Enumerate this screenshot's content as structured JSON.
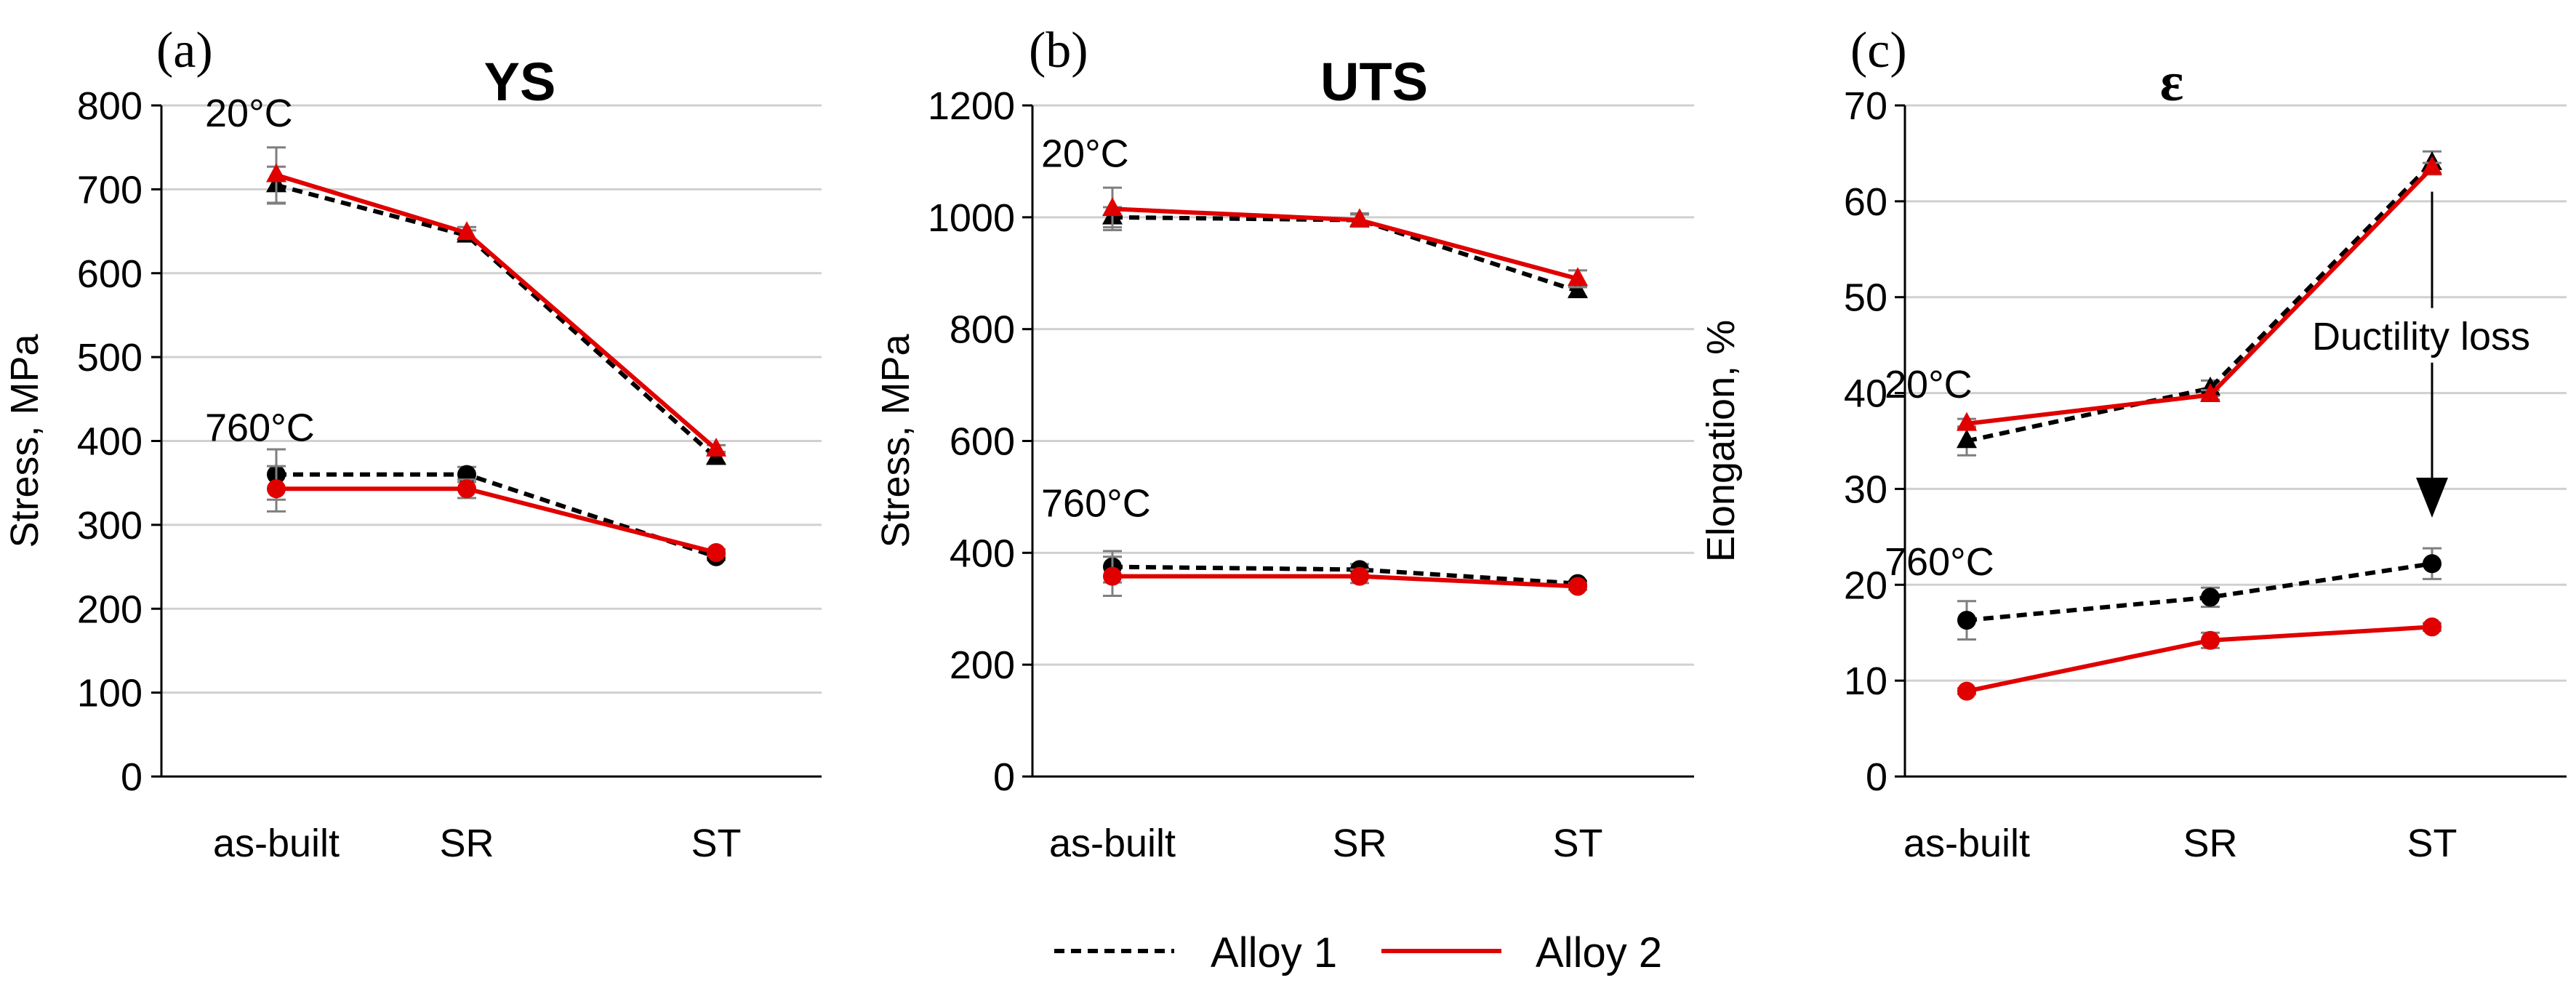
{
  "legend": {
    "entries": [
      {
        "label": "Alloy 1",
        "color": "#000000",
        "dash": true
      },
      {
        "label": "Alloy 2",
        "color": "#e00000",
        "dash": false
      }
    ]
  },
  "colors": {
    "alloy1": "#000000",
    "alloy2": "#e00000",
    "grid": "#d0d0d0",
    "axis": "#000000",
    "errorbar": "#7f7f7f"
  },
  "chart_data": [
    {
      "type": "line",
      "panel_label": "(a)",
      "title": "YS",
      "ylabel": "Stress, MPa",
      "categories": [
        "as-built",
        "SR",
        "ST"
      ],
      "ylim": [
        0,
        800
      ],
      "yticks": [
        0,
        100,
        200,
        300,
        400,
        500,
        600,
        700,
        800
      ],
      "ytick_labels": [
        "0",
        "100",
        "200",
        "300",
        "400",
        "500",
        "600",
        "700",
        "800"
      ],
      "grid": true,
      "annotations": [
        {
          "text": "20°C",
          "x": 0,
          "y": 775
        },
        {
          "text": "760°C",
          "x": 0,
          "y": 400
        }
      ],
      "series": [
        {
          "name": "Alloy 1",
          "temp": "20°C",
          "marker": "triangle",
          "values": [
            705,
            645,
            380
          ],
          "errors": [
            22,
            6,
            7
          ]
        },
        {
          "name": "Alloy 2",
          "temp": "20°C",
          "marker": "triangle",
          "values": [
            717,
            648,
            390
          ],
          "errors": [
            33,
            7,
            5
          ]
        },
        {
          "name": "Alloy 1",
          "temp": "760°C",
          "marker": "circle",
          "values": [
            360,
            360,
            262
          ],
          "errors": [
            30,
            9,
            4
          ]
        },
        {
          "name": "Alloy 2",
          "temp": "760°C",
          "marker": "circle",
          "values": [
            343,
            343,
            267
          ],
          "errors": [
            27,
            11,
            4
          ]
        }
      ]
    },
    {
      "type": "line",
      "panel_label": "(b)",
      "title": "UTS",
      "ylabel": "Stress, MPa",
      "categories": [
        "as-built",
        "SR",
        "ST"
      ],
      "ylim": [
        0,
        1200
      ],
      "yticks": [
        0,
        200,
        400,
        600,
        800,
        1000,
        1200
      ],
      "ytick_labels": [
        "0",
        "200",
        "400",
        "600",
        "800",
        "1000",
        "1200"
      ],
      "grid": true,
      "annotations": [
        {
          "text": "20°C",
          "x": 0,
          "y": 1090
        },
        {
          "text": "760°C",
          "x": 0,
          "y": 465
        }
      ],
      "series": [
        {
          "name": "Alloy 1",
          "temp": "20°C",
          "marker": "triangle",
          "values": [
            1000,
            995,
            868
          ],
          "errors": [
            18,
            10,
            10
          ]
        },
        {
          "name": "Alloy 2",
          "temp": "20°C",
          "marker": "triangle",
          "values": [
            1015,
            995,
            890
          ],
          "errors": [
            38,
            12,
            15
          ]
        },
        {
          "name": "Alloy 1",
          "temp": "760°C",
          "marker": "circle",
          "values": [
            375,
            370,
            345
          ],
          "errors": [
            28,
            10,
            5
          ]
        },
        {
          "name": "Alloy 2",
          "temp": "760°C",
          "marker": "circle",
          "values": [
            358,
            358,
            340
          ],
          "errors": [
            35,
            12,
            6
          ]
        }
      ]
    },
    {
      "type": "line",
      "panel_label": "(c)",
      "title": "ε",
      "ylabel": "Elongation, %",
      "categories": [
        "as-built",
        "SR",
        "ST"
      ],
      "ylim": [
        0,
        70
      ],
      "yticks": [
        0,
        10,
        20,
        30,
        40,
        50,
        60,
        70
      ],
      "ytick_labels": [
        "0",
        "10",
        "20",
        "30",
        "40",
        "50",
        "60",
        "70"
      ],
      "grid": true,
      "annotations": [
        {
          "text": "20°C",
          "x": -0.2,
          "y": 39.5
        },
        {
          "text": "760°C",
          "x": -0.2,
          "y": 21
        }
      ],
      "arrow_annotation": {
        "text": "Ductility loss",
        "x": 2,
        "y_from": 61,
        "y_to": 27
      },
      "series": [
        {
          "name": "Alloy 1",
          "temp": "20°C",
          "marker": "triangle",
          "values": [
            35,
            40.5,
            64
          ],
          "errors": [
            1.5,
            0.8,
            1.2
          ]
        },
        {
          "name": "Alloy 2",
          "temp": "20°C",
          "marker": "triangle",
          "values": [
            36.8,
            39.8,
            63.5
          ],
          "errors": [
            0.5,
            0.5,
            0.5
          ]
        },
        {
          "name": "Alloy 1",
          "temp": "760°C",
          "marker": "circle",
          "values": [
            16.3,
            18.7,
            22.2
          ],
          "errors": [
            2.0,
            1.0,
            1.6
          ]
        },
        {
          "name": "Alloy 2",
          "temp": "760°C",
          "marker": "circle",
          "values": [
            8.9,
            14.2,
            15.6
          ],
          "errors": [
            0.3,
            0.8,
            0.4
          ]
        }
      ]
    }
  ]
}
